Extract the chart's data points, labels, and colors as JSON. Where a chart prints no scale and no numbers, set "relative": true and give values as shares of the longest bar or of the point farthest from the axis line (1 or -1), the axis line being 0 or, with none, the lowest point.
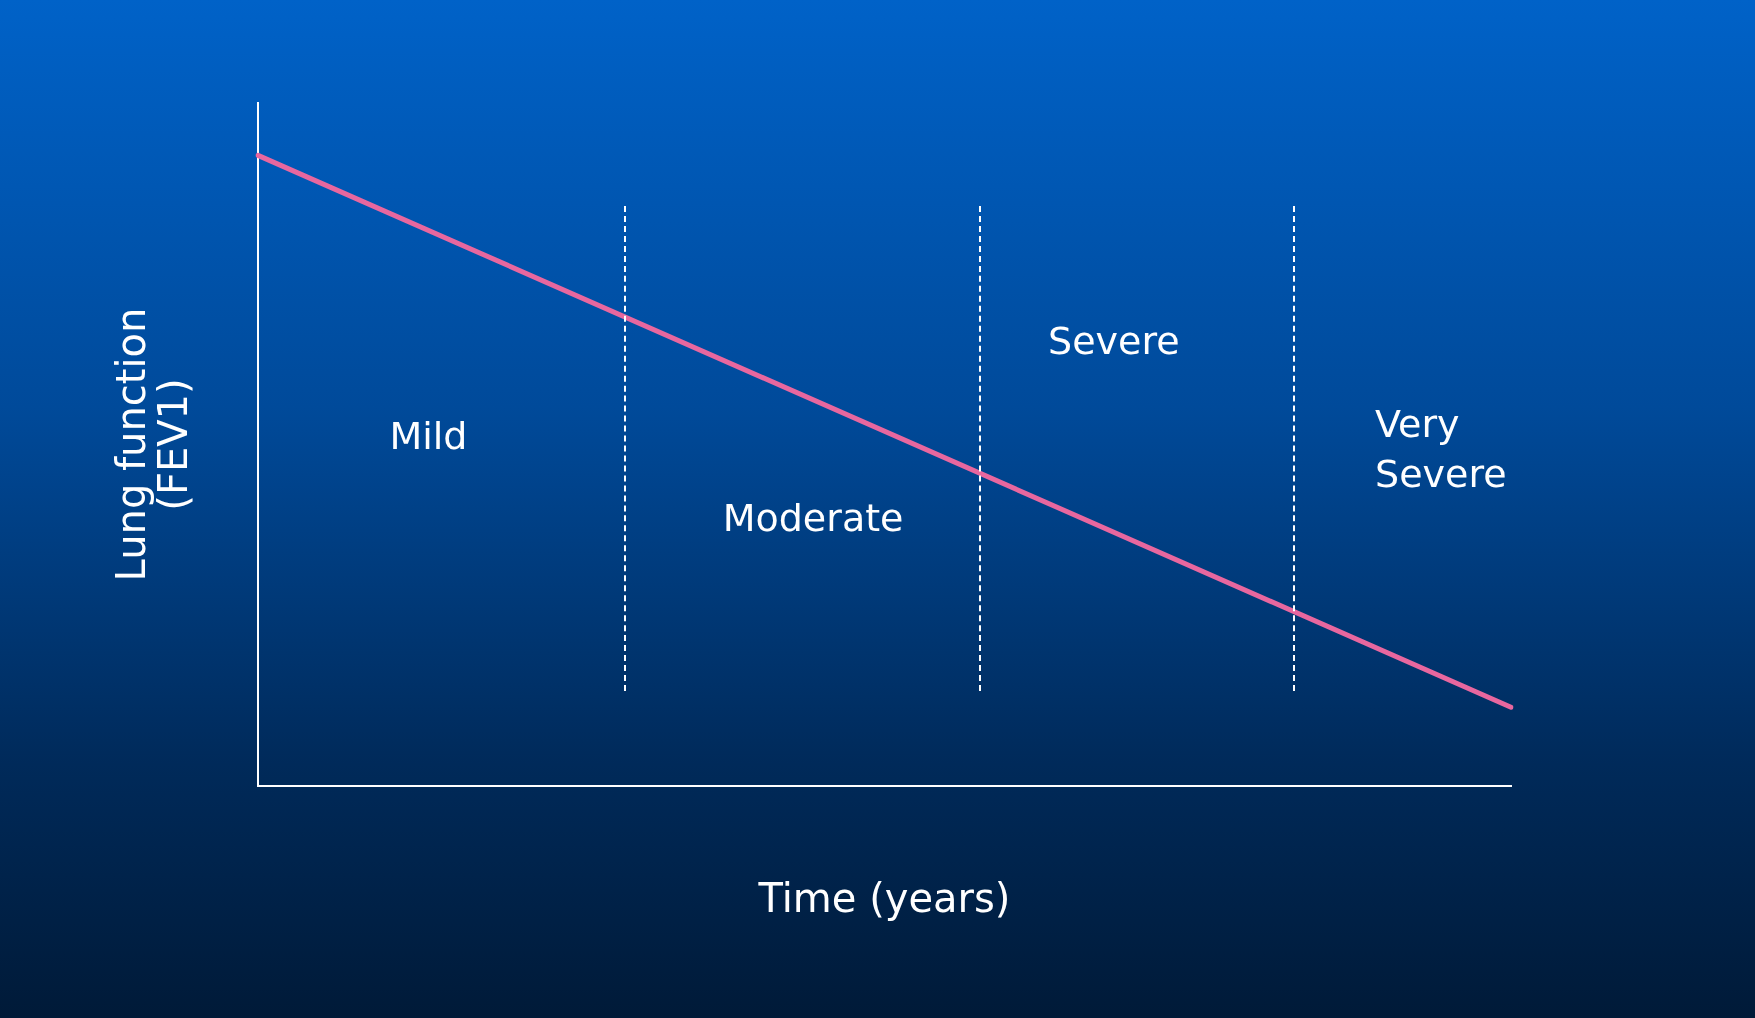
{
  "chart_data": {
    "type": "line",
    "relative": true,
    "xlabel": "Time (years)",
    "ylabel": "Lung function\n(FEV1)",
    "categories": [
      null,
      null
    ],
    "legend": false,
    "marker": "none",
    "line_style": "solid",
    "series": [
      {
        "color": "#e8679f",
        "values": [
          1,
          0.125
        ]
      }
    ],
    "annotations": [
      "Mild",
      "Moderate",
      "Severe",
      "Very\nSevere"
    ]
  }
}
